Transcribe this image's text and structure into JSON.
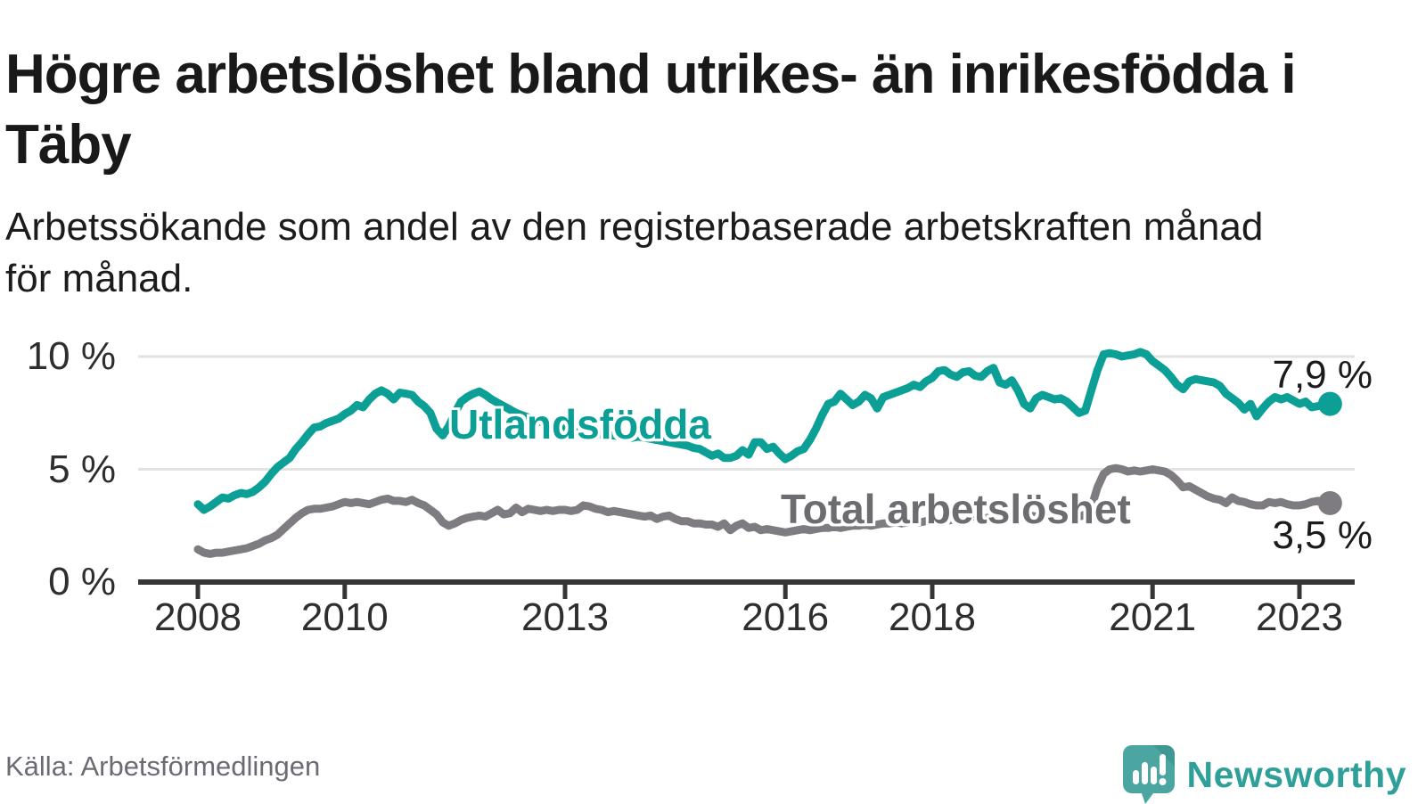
{
  "header": {
    "title": "Högre arbetslöshet bland utrikes- än inrikesfödda i Täby",
    "subtitle": "Arbetssökande som andel av den registerbaserade arbetskraften månad för månad."
  },
  "footer": {
    "source": "Källa: Arbetsförmedlingen",
    "brand": "Newsworthy"
  },
  "colors": {
    "teal_line": "#0b9f96",
    "gray_line": "#7e7c81",
    "gray_label": "#6d6c70",
    "grid": "#e3e3e3",
    "axis": "#363636",
    "tick_text": "#2e2e2e",
    "logo_bubble": "#4ba6a1",
    "logo_fold": "#3f9894",
    "logo_text": "#2f9f9a"
  },
  "chart_data": {
    "type": "line",
    "title": "Högre arbetslöshet bland utrikes- än inrikesfödda i Täby",
    "xlabel": "",
    "ylabel": "Arbetssökande som andel av den registerbaserade arbetskraften",
    "unit": "%",
    "x_start": {
      "year": 2008,
      "month": 1
    },
    "x_end": {
      "year": 2023,
      "month": 6
    },
    "frequency": "monthly",
    "ylim": [
      0,
      10.5
    ],
    "grid": "horizontal-only",
    "legend": "inline-labels",
    "yticks": [
      {
        "value": 0,
        "label": "0 %"
      },
      {
        "value": 5,
        "label": "5 %"
      },
      {
        "value": 10,
        "label": "10 %"
      }
    ],
    "xticks": [
      {
        "year": 2008,
        "label": "2008"
      },
      {
        "year": 2010,
        "label": "2010"
      },
      {
        "year": 2013,
        "label": "2013"
      },
      {
        "year": 2016,
        "label": "2016"
      },
      {
        "year": 2018,
        "label": "2018"
      },
      {
        "year": 2021,
        "label": "2021"
      },
      {
        "year": 2023,
        "label": "2023"
      }
    ],
    "series": [
      {
        "name": "Utlandsfödda",
        "color": "#0b9f96",
        "label_color": "#0b9f96",
        "end_label": "7,9 %",
        "end_value": 7.9,
        "values": [
          3.45,
          3.2,
          3.35,
          3.55,
          3.75,
          3.7,
          3.85,
          3.95,
          3.9,
          4.0,
          4.2,
          4.45,
          4.8,
          5.1,
          5.3,
          5.5,
          5.9,
          6.2,
          6.55,
          6.85,
          6.9,
          7.05,
          7.15,
          7.25,
          7.45,
          7.6,
          7.85,
          7.75,
          8.1,
          8.35,
          8.5,
          8.35,
          8.1,
          8.4,
          8.35,
          8.3,
          8.0,
          7.8,
          7.5,
          6.8,
          6.5,
          6.9,
          7.5,
          8.0,
          8.2,
          8.35,
          8.45,
          8.3,
          8.1,
          7.95,
          7.8,
          7.65,
          7.5,
          7.4,
          7.3,
          7.2,
          7.1,
          7.05,
          6.95,
          6.9,
          6.85,
          6.8,
          6.75,
          6.7,
          6.65,
          6.6,
          6.55,
          6.5,
          6.5,
          6.45,
          6.45,
          6.4,
          6.45,
          6.4,
          6.35,
          6.3,
          6.25,
          6.2,
          6.15,
          6.1,
          6.05,
          5.95,
          5.9,
          5.75,
          5.6,
          5.7,
          5.5,
          5.5,
          5.6,
          5.85,
          5.65,
          6.2,
          6.2,
          5.9,
          6.0,
          5.7,
          5.45,
          5.6,
          5.8,
          5.9,
          6.3,
          6.8,
          7.4,
          7.9,
          8.0,
          8.35,
          8.1,
          7.85,
          8.0,
          8.3,
          8.15,
          7.7,
          8.2,
          8.3,
          8.4,
          8.5,
          8.6,
          8.75,
          8.65,
          8.9,
          9.05,
          9.35,
          9.4,
          9.2,
          9.1,
          9.3,
          9.35,
          9.15,
          9.1,
          9.35,
          9.5,
          8.85,
          8.75,
          8.95,
          8.5,
          7.9,
          7.7,
          8.15,
          8.3,
          8.2,
          8.1,
          8.15,
          8.0,
          7.75,
          7.5,
          7.6,
          8.5,
          9.4,
          10.1,
          10.15,
          10.1,
          10.0,
          10.05,
          10.1,
          10.2,
          10.1,
          9.8,
          9.6,
          9.4,
          9.1,
          8.75,
          8.55,
          8.9,
          9.0,
          8.95,
          8.9,
          8.85,
          8.7,
          8.35,
          8.15,
          7.95,
          7.65,
          7.9,
          7.35,
          7.7,
          8.0,
          8.2,
          8.1,
          8.2,
          8.05,
          7.9,
          8.0,
          7.75,
          7.8,
          7.85,
          7.9
        ]
      },
      {
        "name": "Total arbetslöshet",
        "color": "#7e7c81",
        "label_color": "#6d6c70",
        "end_label": "3,5 %",
        "end_value": 3.5,
        "values": [
          1.45,
          1.3,
          1.25,
          1.3,
          1.3,
          1.35,
          1.4,
          1.45,
          1.5,
          1.6,
          1.7,
          1.85,
          1.95,
          2.1,
          2.35,
          2.6,
          2.85,
          3.05,
          3.2,
          3.25,
          3.25,
          3.3,
          3.35,
          3.45,
          3.55,
          3.5,
          3.55,
          3.5,
          3.45,
          3.55,
          3.65,
          3.7,
          3.6,
          3.6,
          3.55,
          3.65,
          3.5,
          3.4,
          3.2,
          3.0,
          2.65,
          2.5,
          2.6,
          2.75,
          2.85,
          2.9,
          2.95,
          2.9,
          3.05,
          3.2,
          3.0,
          3.05,
          3.3,
          3.1,
          3.25,
          3.2,
          3.15,
          3.2,
          3.15,
          3.2,
          3.2,
          3.15,
          3.2,
          3.4,
          3.35,
          3.25,
          3.2,
          3.1,
          3.15,
          3.1,
          3.05,
          3.0,
          2.95,
          2.9,
          2.95,
          2.8,
          2.9,
          2.95,
          2.8,
          2.7,
          2.7,
          2.6,
          2.6,
          2.55,
          2.55,
          2.45,
          2.6,
          2.3,
          2.5,
          2.6,
          2.4,
          2.45,
          2.3,
          2.35,
          2.3,
          2.25,
          2.2,
          2.25,
          2.3,
          2.35,
          2.3,
          2.35,
          2.4,
          2.4,
          2.45,
          2.4,
          2.45,
          2.5,
          2.5,
          2.55,
          2.5,
          2.55,
          2.6,
          2.6,
          2.65,
          2.6,
          2.65,
          2.7,
          2.65,
          2.7,
          2.7,
          2.75,
          2.7,
          2.75,
          2.8,
          2.75,
          2.8,
          2.85,
          2.8,
          2.85,
          2.8,
          2.85,
          2.85,
          2.9,
          2.85,
          2.9,
          2.95,
          2.9,
          2.95,
          3.0,
          2.95,
          3.0,
          2.95,
          2.9,
          2.9,
          3.0,
          3.3,
          4.2,
          4.8,
          5.0,
          5.05,
          5.0,
          4.9,
          4.95,
          4.9,
          4.95,
          5.0,
          4.95,
          4.9,
          4.75,
          4.5,
          4.2,
          4.25,
          4.1,
          3.95,
          3.8,
          3.7,
          3.65,
          3.5,
          3.75,
          3.6,
          3.55,
          3.45,
          3.4,
          3.4,
          3.55,
          3.5,
          3.55,
          3.45,
          3.4,
          3.4,
          3.45,
          3.55,
          3.6,
          3.5,
          3.5
        ]
      }
    ]
  }
}
